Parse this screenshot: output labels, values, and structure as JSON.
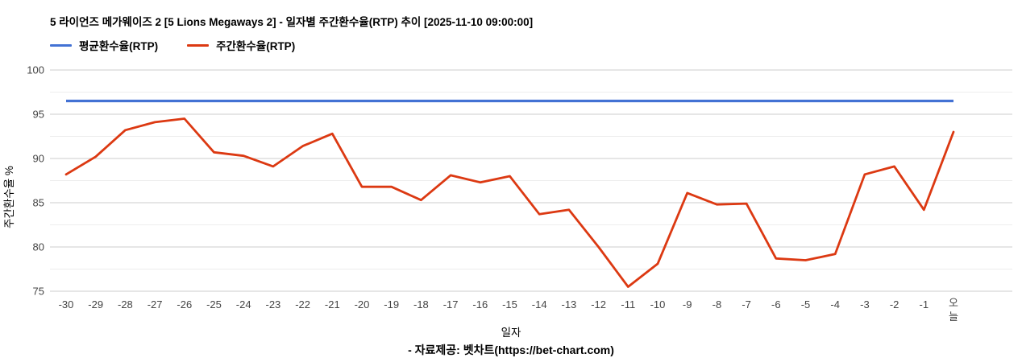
{
  "header": {
    "title": "5 라이언즈 메가웨이즈 2 [5 Lions Megaways 2] - 일자별 주간환수율(RTP) 추이 [2025-11-10 09:00:00]"
  },
  "footer": {
    "text": "- 자료제공: 벳차트(https://bet-chart.com)"
  },
  "chart_data": {
    "type": "line",
    "title": "5 라이언즈 메가웨이즈 2 [5 Lions Megaways 2] - 일자별 주간환수율(RTP) 추이 [2025-11-10 09:00:00]",
    "xlabel": "일자",
    "ylabel": "주간환수율 %",
    "ylim": [
      75,
      100
    ],
    "ytick_step": 5,
    "yticks": [
      75,
      80,
      85,
      90,
      95,
      100
    ],
    "minor_gridlines": true,
    "legend_position": "top-left",
    "categories": [
      "-30",
      "-29",
      "-28",
      "-27",
      "-26",
      "-25",
      "-24",
      "-23",
      "-22",
      "-21",
      "-20",
      "-19",
      "-18",
      "-17",
      "-16",
      "-15",
      "-14",
      "-13",
      "-12",
      "-11",
      "-10",
      "-9",
      "-8",
      "-7",
      "-6",
      "-5",
      "-4",
      "-3",
      "-2",
      "-1",
      "오늘"
    ],
    "last_label_stacked": true,
    "series": [
      {
        "name": "평균환수율(RTP)",
        "type": "constant",
        "value": 96.5,
        "color": "#4372d4"
      },
      {
        "name": "주간환수율(RTP)",
        "type": "line",
        "color": "#dc3912",
        "values": [
          88.2,
          90.2,
          93.2,
          94.1,
          94.5,
          90.7,
          90.3,
          89.1,
          91.4,
          92.8,
          86.8,
          86.8,
          85.3,
          88.1,
          87.3,
          88.0,
          83.7,
          84.2,
          80.0,
          75.5,
          78.1,
          86.1,
          84.8,
          84.9,
          78.7,
          78.5,
          79.2,
          88.2,
          89.1,
          84.2,
          93.0
        ]
      }
    ],
    "grid_major_color": "#cccccc",
    "grid_minor_color": "#ededed",
    "axis_label_color": "#444444"
  }
}
